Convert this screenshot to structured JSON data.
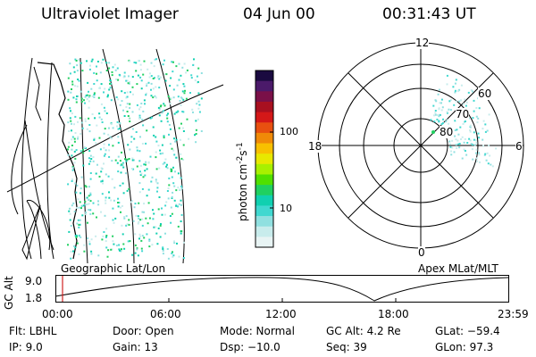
{
  "header": {
    "instrument": "Ultraviolet Imager",
    "date": "04 Jun 00",
    "time": "00:31:43 UT"
  },
  "geo_panel": {
    "caption": "Geographic Lat/Lon"
  },
  "polar_panel": {
    "caption": "Apex MLat/MLT",
    "mlt_labels": [
      "12",
      "18",
      "6",
      "0"
    ],
    "mlat_labels": [
      "60",
      "70",
      "80"
    ]
  },
  "colorbar": {
    "unit_label": "photon cm",
    "unit_exp1": "-2",
    "unit_s": "s",
    "unit_exp2": "-1",
    "ticks": [
      "100",
      "10"
    ],
    "colors": [
      "#1a0a40",
      "#4b1a6a",
      "#7a1048",
      "#a81020",
      "#d41818",
      "#e85010",
      "#f08a08",
      "#f8c000",
      "#e8e800",
      "#a8f000",
      "#50e000",
      "#20d060",
      "#10d0b0",
      "#40d8d0",
      "#90e0e0",
      "#c8ecec",
      "#e8f4f4"
    ]
  },
  "altitude_plot": {
    "ylabel": "GC Alt",
    "yticks": [
      "9.0",
      "1.8"
    ],
    "xticks": [
      "00:00",
      "06:00",
      "12:00",
      "18:00",
      "23:59"
    ]
  },
  "footer": {
    "row1": [
      "Flt: LBHL",
      "Door: Open",
      "Mode: Normal",
      "GC Alt: 4.2 Re",
      "GLat: −59.4"
    ],
    "row2": [
      "IP:  9.0",
      "Gain: 13",
      "Dsp:  −10.0",
      "Seq: 39",
      "GLon:  97.3"
    ]
  }
}
